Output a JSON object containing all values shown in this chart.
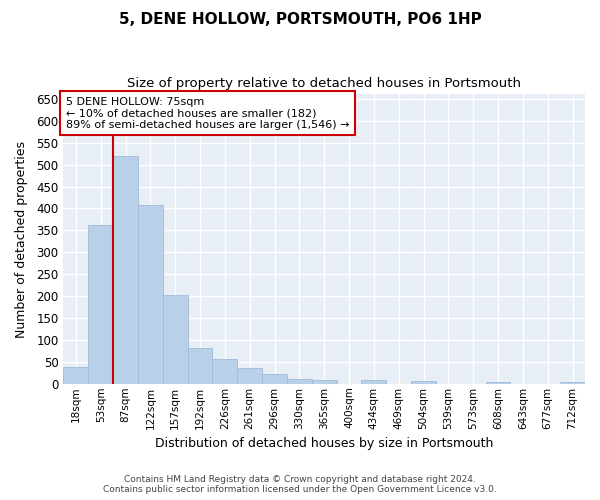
{
  "title": "5, DENE HOLLOW, PORTSMOUTH, PO6 1HP",
  "subtitle": "Size of property relative to detached houses in Portsmouth",
  "xlabel": "Distribution of detached houses by size in Portsmouth",
  "ylabel": "Number of detached properties",
  "footer_line1": "Contains HM Land Registry data © Crown copyright and database right 2024.",
  "footer_line2": "Contains public sector information licensed under the Open Government Licence v3.0.",
  "categories": [
    "18sqm",
    "53sqm",
    "87sqm",
    "122sqm",
    "157sqm",
    "192sqm",
    "226sqm",
    "261sqm",
    "296sqm",
    "330sqm",
    "365sqm",
    "400sqm",
    "434sqm",
    "469sqm",
    "504sqm",
    "539sqm",
    "573sqm",
    "608sqm",
    "643sqm",
    "677sqm",
    "712sqm"
  ],
  "values": [
    38,
    363,
    519,
    408,
    203,
    82,
    57,
    35,
    23,
    11,
    8,
    0,
    9,
    0,
    6,
    0,
    0,
    5,
    0,
    0,
    5
  ],
  "bar_color": "#b8d0e8",
  "bar_edge_color": "#a0bcd8",
  "bg_color": "#e8eef6",
  "grid_color": "#ffffff",
  "vline_x_index": 2,
  "vline_color": "#cc0000",
  "annotation_text": "5 DENE HOLLOW: 75sqm\n← 10% of detached houses are smaller (182)\n89% of semi-detached houses are larger (1,546) →",
  "annotation_box_color": "#cc0000",
  "ylim": [
    0,
    660
  ],
  "yticks": [
    0,
    50,
    100,
    150,
    200,
    250,
    300,
    350,
    400,
    450,
    500,
    550,
    600,
    650
  ]
}
